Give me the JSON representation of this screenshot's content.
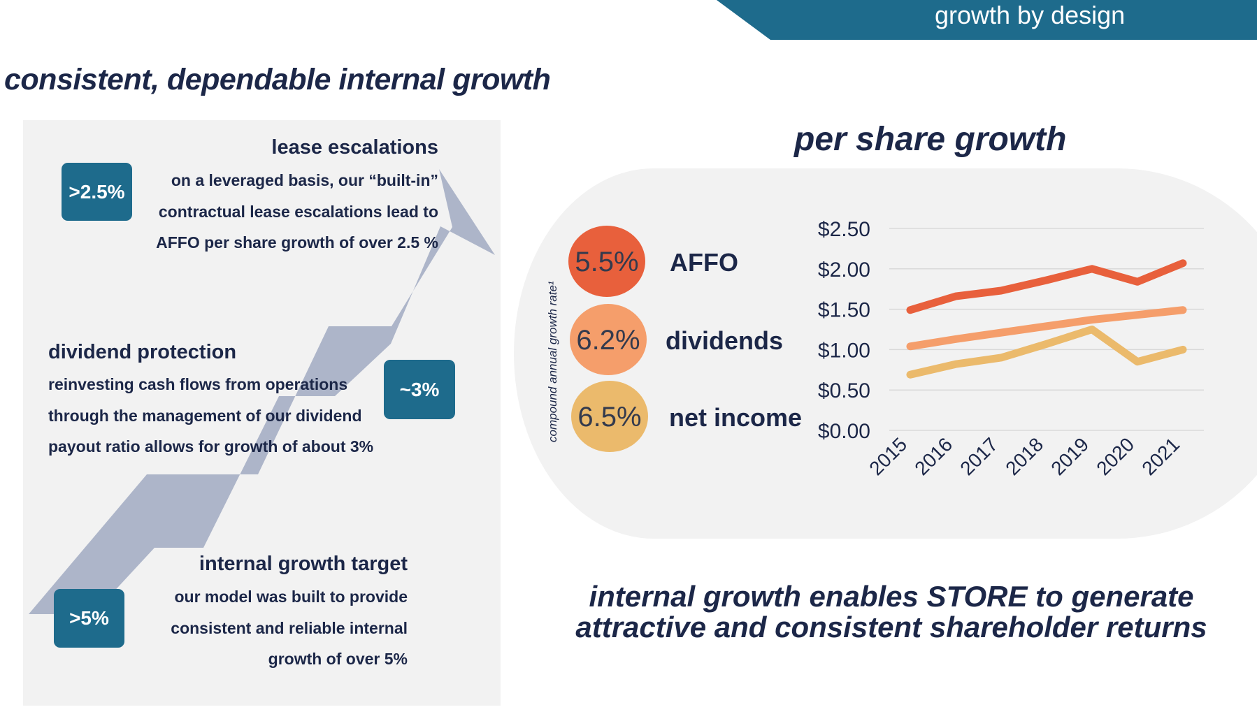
{
  "header": {
    "banner_text": "growth by design",
    "banner_color": "#1e6b8c"
  },
  "page_title": "consistent, dependable internal growth",
  "left_panel": {
    "arrow_color": "#adb5c9",
    "blocks": [
      {
        "badge": ">2.5%",
        "title": "lease escalations",
        "lines": [
          "on a leveraged basis, our “built-in”",
          "contractual lease escalations lead to",
          "AFFO per share growth of over 2.5 %"
        ]
      },
      {
        "badge": "~3%",
        "title": "dividend protection",
        "lines": [
          "reinvesting cash flows from operations",
          "through the management of our dividend",
          "payout ratio allows for growth of about 3%"
        ]
      },
      {
        "badge": ">5%",
        "title": "internal growth target",
        "lines": [
          "our model was built to provide",
          "consistent and reliable internal",
          "growth of over 5%"
        ]
      }
    ]
  },
  "chart_data": {
    "type": "line",
    "title": "per share growth",
    "ylabel": "compound annual growth rate¹",
    "categories": [
      "2015",
      "2016",
      "2017",
      "2018",
      "2019",
      "2020",
      "2021"
    ],
    "y_ticks": [
      "$2.50",
      "$2.00",
      "$1.50",
      "$1.00",
      "$0.50",
      "$0.00"
    ],
    "ylim": [
      0,
      2.5
    ],
    "grid": true,
    "legend_position": "left",
    "series": [
      {
        "name": "AFFO",
        "rate": "5.5%",
        "color": "#e8603c",
        "values": [
          1.49,
          1.66,
          1.73,
          1.86,
          2.0,
          1.84,
          2.07
        ]
      },
      {
        "name": "dividends",
        "rate": "6.2%",
        "color": "#f59e6b",
        "values": [
          1.04,
          1.13,
          1.21,
          1.29,
          1.37,
          1.43,
          1.49
        ]
      },
      {
        "name": "net income",
        "rate": "6.5%",
        "color": "#ebba6c",
        "values": [
          0.69,
          0.82,
          0.9,
          1.07,
          1.25,
          0.85,
          1.0
        ]
      }
    ]
  },
  "footer": {
    "line1": "internal growth enables STORE to generate",
    "line2": "attractive and consistent shareholder returns"
  }
}
